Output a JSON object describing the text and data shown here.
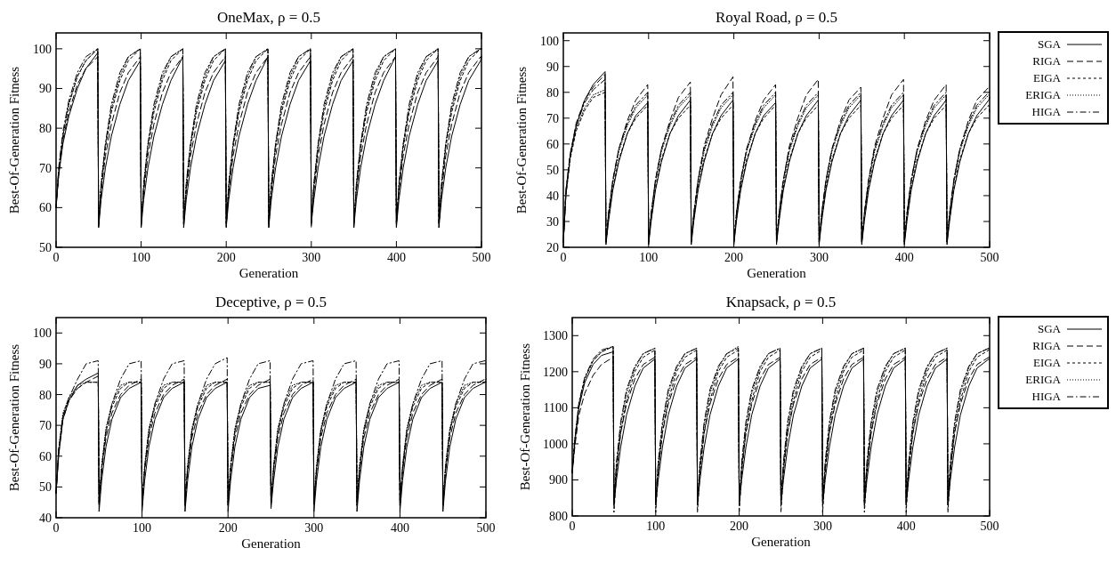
{
  "chart_data": [
    {
      "type": "line",
      "title": "OneMax, ρ = 0.5",
      "xlabel": "Generation",
      "ylabel": "Best-Of-Generation Fitness",
      "xlim": [
        0,
        500
      ],
      "xticks": [
        0,
        100,
        200,
        300,
        400,
        500
      ],
      "ylim": [
        50,
        104
      ],
      "yticks": [
        50,
        60,
        70,
        80,
        90,
        100
      ],
      "legend": false,
      "x": [
        0,
        3,
        8,
        15,
        25,
        35,
        49,
        50,
        53,
        58,
        65,
        75,
        85,
        99,
        100,
        103,
        108,
        115,
        125,
        135,
        149,
        150,
        153,
        158,
        165,
        175,
        185,
        199,
        200,
        203,
        208,
        215,
        225,
        235,
        249,
        250,
        253,
        258,
        265,
        275,
        285,
        299,
        300,
        303,
        308,
        315,
        325,
        335,
        349,
        350,
        353,
        358,
        365,
        375,
        385,
        399,
        400,
        403,
        408,
        415,
        425,
        435,
        449,
        450,
        453,
        458,
        465,
        475,
        485,
        499,
        500
      ],
      "series": [
        {
          "color": "#000000",
          "line_style": "solid",
          "values": [
            60,
            68,
            76,
            83,
            90,
            95,
            99,
            55,
            62,
            70,
            78,
            86,
            92,
            97,
            55,
            62,
            70,
            78,
            86,
            92,
            98,
            55,
            62,
            70,
            78,
            86,
            92,
            97,
            55,
            62,
            70,
            78,
            86,
            92,
            98,
            55,
            62,
            70,
            78,
            86,
            92,
            97,
            56,
            62,
            70,
            78,
            86,
            92,
            97,
            55,
            62,
            70,
            78,
            86,
            92,
            98,
            55,
            62,
            70,
            78,
            86,
            92,
            97,
            55,
            62,
            70,
            78,
            86,
            92,
            97,
            98
          ]
        },
        {
          "color": "#000000",
          "line_style": "dashed",
          "values": [
            60,
            68,
            77,
            84,
            91,
            95,
            98,
            56,
            64,
            73,
            81,
            89,
            94,
            98,
            56,
            64,
            73,
            81,
            89,
            94,
            98,
            56,
            64,
            73,
            81,
            89,
            94,
            98,
            56,
            64,
            73,
            81,
            89,
            94,
            98,
            56,
            64,
            73,
            81,
            89,
            94,
            98,
            56,
            64,
            73,
            81,
            89,
            94,
            98,
            56,
            64,
            73,
            81,
            89,
            94,
            98,
            56,
            64,
            73,
            81,
            89,
            94,
            98,
            56,
            64,
            73,
            81,
            89,
            94,
            98,
            98
          ]
        },
        {
          "color": "#000000",
          "line_style": "shortdash",
          "values": [
            60,
            69,
            78,
            86,
            93,
            97,
            100,
            56,
            65,
            75,
            84,
            92,
            97,
            100,
            56,
            65,
            75,
            84,
            92,
            97,
            100,
            56,
            65,
            75,
            84,
            92,
            97,
            100,
            56,
            65,
            75,
            84,
            92,
            97,
            100,
            56,
            65,
            75,
            84,
            92,
            97,
            100,
            56,
            65,
            75,
            84,
            92,
            97,
            100,
            56,
            65,
            75,
            84,
            92,
            97,
            100,
            56,
            65,
            75,
            84,
            92,
            97,
            100,
            56,
            65,
            75,
            84,
            92,
            97,
            100,
            100
          ]
        },
        {
          "color": "#000000",
          "line_style": "dotted",
          "values": [
            60,
            69,
            78,
            86,
            93,
            97,
            100,
            56,
            66,
            76,
            85,
            93,
            98,
            100,
            56,
            66,
            76,
            85,
            93,
            98,
            100,
            56,
            66,
            76,
            85,
            93,
            98,
            100,
            56,
            66,
            76,
            85,
            93,
            98,
            100,
            56,
            66,
            76,
            85,
            93,
            98,
            100,
            56,
            66,
            76,
            85,
            93,
            98,
            100,
            56,
            66,
            76,
            85,
            93,
            98,
            100,
            56,
            66,
            76,
            85,
            93,
            98,
            100,
            56,
            66,
            76,
            85,
            93,
            98,
            100,
            100
          ]
        },
        {
          "color": "#000000",
          "line_style": "dashdot",
          "values": [
            60,
            70,
            79,
            87,
            94,
            98,
            100,
            55,
            66,
            76,
            86,
            94,
            98,
            100,
            55,
            66,
            76,
            86,
            94,
            98,
            100,
            55,
            66,
            76,
            86,
            94,
            98,
            100,
            55,
            66,
            76,
            86,
            94,
            98,
            100,
            55,
            66,
            76,
            86,
            94,
            98,
            100,
            55,
            66,
            76,
            86,
            94,
            98,
            100,
            55,
            66,
            76,
            86,
            94,
            98,
            100,
            55,
            66,
            76,
            86,
            94,
            98,
            100,
            55,
            66,
            76,
            86,
            94,
            98,
            100,
            100
          ]
        }
      ]
    },
    {
      "type": "line",
      "title": "Royal Road, ρ = 0.5",
      "xlabel": "Generation",
      "ylabel": "Best-Of-Generation Fitness",
      "xlim": [
        0,
        500
      ],
      "xticks": [
        0,
        100,
        200,
        300,
        400,
        500
      ],
      "ylim": [
        20,
        103
      ],
      "yticks": [
        20,
        30,
        40,
        50,
        60,
        70,
        80,
        90,
        100
      ],
      "legend": "right",
      "x": [
        0,
        3,
        8,
        15,
        25,
        35,
        49,
        50,
        53,
        58,
        65,
        75,
        85,
        99,
        100,
        103,
        108,
        115,
        125,
        135,
        149,
        150,
        153,
        158,
        165,
        175,
        185,
        199,
        200,
        203,
        208,
        215,
        225,
        235,
        249,
        250,
        253,
        258,
        265,
        275,
        285,
        299,
        300,
        303,
        308,
        315,
        325,
        335,
        349,
        350,
        353,
        358,
        365,
        375,
        385,
        399,
        400,
        403,
        408,
        415,
        425,
        435,
        449,
        450,
        453,
        458,
        465,
        475,
        485,
        499,
        500
      ],
      "series": [
        {
          "name": "SGA",
          "color": "#000000",
          "line_style": "solid",
          "values": [
            22,
            40,
            55,
            67,
            77,
            83,
            88,
            21,
            30,
            42,
            53,
            64,
            71,
            76,
            21,
            30,
            42,
            53,
            64,
            71,
            77,
            21,
            30,
            42,
            53,
            64,
            71,
            77,
            21,
            30,
            42,
            53,
            64,
            71,
            76,
            21,
            30,
            42,
            53,
            64,
            71,
            77,
            21,
            30,
            42,
            53,
            64,
            71,
            77,
            21,
            30,
            42,
            53,
            64,
            71,
            77,
            21,
            30,
            42,
            53,
            64,
            71,
            77,
            21,
            30,
            42,
            53,
            64,
            71,
            77,
            78
          ]
        },
        {
          "name": "RIGA",
          "color": "#000000",
          "line_style": "dashed",
          "values": [
            22,
            42,
            56,
            68,
            77,
            82,
            87,
            22,
            33,
            46,
            58,
            69,
            77,
            83,
            22,
            33,
            46,
            58,
            69,
            78,
            84,
            22,
            33,
            46,
            59,
            70,
            79,
            86,
            22,
            33,
            46,
            58,
            69,
            77,
            83,
            22,
            33,
            46,
            59,
            70,
            79,
            85,
            22,
            33,
            46,
            58,
            69,
            77,
            82,
            22,
            33,
            46,
            59,
            70,
            79,
            85,
            22,
            33,
            46,
            58,
            69,
            77,
            83,
            22,
            33,
            46,
            58,
            69,
            77,
            82,
            82
          ]
        },
        {
          "name": "EIGA",
          "color": "#000000",
          "line_style": "shortdash",
          "values": [
            22,
            40,
            54,
            65,
            73,
            78,
            80,
            22,
            31,
            43,
            54,
            64,
            70,
            75,
            22,
            31,
            43,
            54,
            64,
            70,
            75,
            22,
            31,
            43,
            54,
            64,
            70,
            75,
            22,
            31,
            43,
            54,
            64,
            70,
            75,
            22,
            31,
            43,
            54,
            64,
            70,
            75,
            22,
            31,
            43,
            54,
            64,
            70,
            75,
            22,
            31,
            43,
            54,
            64,
            70,
            75,
            22,
            31,
            43,
            54,
            64,
            70,
            75,
            22,
            31,
            43,
            54,
            64,
            70,
            75,
            72
          ]
        },
        {
          "name": "ERIGA",
          "color": "#000000",
          "line_style": "dotted",
          "values": [
            22,
            41,
            55,
            66,
            74,
            79,
            81,
            22,
            33,
            45,
            57,
            67,
            74,
            79,
            22,
            33,
            45,
            57,
            67,
            74,
            79,
            22,
            33,
            45,
            57,
            67,
            74,
            79,
            22,
            33,
            45,
            57,
            67,
            74,
            79,
            22,
            33,
            45,
            57,
            67,
            74,
            79,
            22,
            33,
            45,
            57,
            67,
            74,
            79,
            22,
            33,
            45,
            57,
            67,
            74,
            79,
            22,
            33,
            45,
            57,
            67,
            74,
            79,
            22,
            33,
            45,
            57,
            67,
            74,
            79,
            78
          ]
        },
        {
          "name": "HIGA",
          "color": "#000000",
          "line_style": "dashdot",
          "values": [
            22,
            42,
            56,
            67,
            76,
            81,
            85,
            22,
            33,
            46,
            58,
            68,
            75,
            80,
            22,
            33,
            46,
            58,
            68,
            75,
            80,
            22,
            33,
            46,
            58,
            68,
            75,
            80,
            22,
            33,
            46,
            58,
            68,
            75,
            80,
            22,
            33,
            46,
            58,
            68,
            75,
            80,
            22,
            33,
            46,
            58,
            68,
            75,
            80,
            22,
            33,
            46,
            58,
            68,
            75,
            80,
            22,
            33,
            46,
            58,
            68,
            75,
            80,
            22,
            33,
            46,
            58,
            68,
            75,
            80,
            80
          ]
        }
      ]
    },
    {
      "type": "line",
      "title": "Deceptive, ρ = 0.5",
      "xlabel": "Generation",
      "ylabel": "Best-Of-Generation Fitness",
      "xlim": [
        0,
        500
      ],
      "xticks": [
        0,
        100,
        200,
        300,
        400,
        500
      ],
      "ylim": [
        40,
        105
      ],
      "yticks": [
        40,
        50,
        60,
        70,
        80,
        90,
        100
      ],
      "legend": false,
      "x": [
        0,
        3,
        8,
        15,
        25,
        35,
        49,
        50,
        53,
        58,
        65,
        75,
        85,
        99,
        100,
        103,
        108,
        115,
        125,
        135,
        149,
        150,
        153,
        158,
        165,
        175,
        185,
        199,
        200,
        203,
        208,
        215,
        225,
        235,
        249,
        250,
        253,
        258,
        265,
        275,
        285,
        299,
        300,
        303,
        308,
        315,
        325,
        335,
        349,
        350,
        353,
        358,
        365,
        375,
        385,
        399,
        400,
        403,
        408,
        415,
        425,
        435,
        449,
        450,
        453,
        458,
        465,
        475,
        485,
        499,
        500
      ],
      "series": [
        {
          "color": "#000000",
          "line_style": "solid",
          "values": [
            48,
            60,
            72,
            78,
            83,
            85,
            87,
            42,
            52,
            63,
            72,
            79,
            82,
            84,
            42,
            52,
            63,
            72,
            79,
            82,
            84,
            42,
            52,
            63,
            72,
            79,
            82,
            84,
            42,
            52,
            63,
            72,
            79,
            82,
            83,
            43,
            52,
            63,
            72,
            79,
            82,
            84,
            42,
            52,
            63,
            72,
            79,
            82,
            84,
            42,
            52,
            63,
            72,
            79,
            82,
            84,
            42,
            52,
            63,
            72,
            79,
            82,
            84,
            42,
            52,
            63,
            72,
            79,
            82,
            84,
            84
          ]
        },
        {
          "color": "#000000",
          "line_style": "dashed",
          "values": [
            48,
            61,
            72,
            78,
            82,
            84,
            86,
            44,
            55,
            66,
            74,
            80,
            83,
            85,
            44,
            55,
            66,
            74,
            80,
            83,
            85,
            44,
            55,
            66,
            74,
            80,
            83,
            85,
            44,
            55,
            66,
            74,
            80,
            83,
            85,
            44,
            55,
            66,
            74,
            80,
            83,
            85,
            44,
            55,
            66,
            74,
            80,
            83,
            85,
            44,
            55,
            66,
            74,
            80,
            83,
            85,
            44,
            55,
            66,
            74,
            80,
            83,
            85,
            44,
            55,
            66,
            74,
            80,
            83,
            85,
            85
          ]
        },
        {
          "color": "#000000",
          "line_style": "shortdash",
          "values": [
            48,
            62,
            73,
            79,
            82,
            84,
            84,
            45,
            56,
            68,
            76,
            82,
            84,
            84,
            45,
            56,
            68,
            76,
            82,
            84,
            84,
            45,
            56,
            68,
            76,
            82,
            84,
            84,
            45,
            56,
            68,
            76,
            82,
            84,
            84,
            45,
            56,
            68,
            76,
            82,
            84,
            84,
            45,
            56,
            68,
            76,
            82,
            84,
            84,
            45,
            56,
            68,
            76,
            82,
            84,
            84,
            45,
            56,
            68,
            76,
            82,
            84,
            84,
            45,
            56,
            68,
            76,
            82,
            84,
            84,
            84
          ]
        },
        {
          "color": "#000000",
          "line_style": "dotted",
          "values": [
            48,
            62,
            74,
            79,
            83,
            84,
            84,
            45,
            57,
            69,
            77,
            83,
            84,
            84,
            45,
            57,
            69,
            77,
            83,
            84,
            84,
            45,
            57,
            69,
            77,
            83,
            84,
            84,
            45,
            57,
            69,
            77,
            83,
            84,
            84,
            45,
            57,
            69,
            77,
            83,
            84,
            84,
            45,
            57,
            69,
            77,
            83,
            84,
            84,
            45,
            57,
            69,
            77,
            83,
            84,
            84,
            45,
            57,
            69,
            77,
            83,
            84,
            84,
            45,
            57,
            69,
            77,
            83,
            84,
            84,
            85
          ]
        },
        {
          "color": "#000000",
          "line_style": "dashdot",
          "values": [
            48,
            62,
            73,
            79,
            85,
            90,
            91,
            44,
            56,
            68,
            77,
            85,
            90,
            91,
            44,
            56,
            68,
            77,
            85,
            90,
            91,
            44,
            56,
            68,
            77,
            85,
            90,
            92,
            44,
            56,
            68,
            77,
            85,
            90,
            91,
            44,
            56,
            68,
            77,
            85,
            90,
            91,
            44,
            56,
            68,
            77,
            85,
            90,
            91,
            44,
            56,
            68,
            77,
            85,
            90,
            91,
            44,
            56,
            68,
            77,
            85,
            90,
            91,
            44,
            56,
            68,
            77,
            85,
            90,
            91,
            91
          ]
        }
      ]
    },
    {
      "type": "line",
      "title": "Knapsack, ρ = 0.5",
      "xlabel": "Generation",
      "ylabel": "Best-Of-Generation Fitness",
      "xlim": [
        0,
        500
      ],
      "xticks": [
        0,
        100,
        200,
        300,
        400,
        500
      ],
      "ylim": [
        800,
        1350
      ],
      "yticks": [
        800,
        900,
        1000,
        1100,
        1200,
        1300
      ],
      "legend": "right",
      "x": [
        0,
        3,
        8,
        15,
        25,
        35,
        49,
        50,
        53,
        58,
        65,
        75,
        85,
        99,
        100,
        103,
        108,
        115,
        125,
        135,
        149,
        150,
        153,
        158,
        165,
        175,
        185,
        199,
        200,
        203,
        208,
        215,
        225,
        235,
        249,
        250,
        253,
        258,
        265,
        275,
        285,
        299,
        300,
        303,
        308,
        315,
        325,
        335,
        349,
        350,
        353,
        358,
        365,
        375,
        385,
        399,
        400,
        403,
        408,
        415,
        425,
        435,
        449,
        450,
        453,
        458,
        465,
        475,
        485,
        499,
        500
      ],
      "series": [
        {
          "name": "SGA",
          "color": "#000000",
          "line_style": "solid",
          "values": [
            920,
            1000,
            1100,
            1170,
            1220,
            1245,
            1255,
            830,
            900,
            990,
            1080,
            1160,
            1210,
            1235,
            830,
            900,
            990,
            1080,
            1160,
            1210,
            1235,
            830,
            900,
            990,
            1080,
            1160,
            1210,
            1235,
            830,
            900,
            990,
            1080,
            1160,
            1210,
            1235,
            830,
            900,
            990,
            1080,
            1160,
            1210,
            1235,
            830,
            900,
            990,
            1080,
            1160,
            1210,
            1235,
            830,
            900,
            990,
            1080,
            1160,
            1210,
            1235,
            830,
            900,
            990,
            1080,
            1160,
            1210,
            1235,
            830,
            900,
            990,
            1080,
            1160,
            1210,
            1235,
            1235
          ]
        },
        {
          "name": "RIGA",
          "color": "#000000",
          "line_style": "dashed",
          "values": [
            920,
            990,
            1080,
            1140,
            1190,
            1220,
            1240,
            840,
            930,
            1030,
            1110,
            1180,
            1220,
            1240,
            840,
            930,
            1030,
            1110,
            1180,
            1220,
            1240,
            840,
            930,
            1030,
            1110,
            1180,
            1220,
            1240,
            840,
            930,
            1030,
            1110,
            1180,
            1220,
            1240,
            840,
            930,
            1030,
            1110,
            1180,
            1220,
            1240,
            840,
            930,
            1030,
            1110,
            1180,
            1220,
            1240,
            840,
            930,
            1030,
            1110,
            1180,
            1220,
            1240,
            840,
            930,
            1030,
            1110,
            1180,
            1220,
            1240,
            840,
            930,
            1030,
            1110,
            1180,
            1220,
            1240,
            1240
          ]
        },
        {
          "name": "EIGA",
          "color": "#000000",
          "line_style": "shortdash",
          "values": [
            920,
            1010,
            1110,
            1180,
            1230,
            1255,
            1270,
            810,
            920,
            1030,
            1120,
            1200,
            1240,
            1260,
            810,
            920,
            1030,
            1120,
            1200,
            1240,
            1260,
            810,
            920,
            1030,
            1120,
            1200,
            1240,
            1260,
            810,
            920,
            1030,
            1120,
            1200,
            1240,
            1260,
            810,
            920,
            1030,
            1120,
            1200,
            1240,
            1260,
            810,
            920,
            1030,
            1120,
            1200,
            1240,
            1260,
            810,
            920,
            1030,
            1120,
            1200,
            1240,
            1260,
            810,
            920,
            1030,
            1120,
            1200,
            1240,
            1260,
            810,
            920,
            1030,
            1120,
            1200,
            1240,
            1260,
            1265
          ]
        },
        {
          "name": "ERIGA",
          "color": "#000000",
          "line_style": "dotted",
          "values": [
            920,
            1010,
            1110,
            1180,
            1230,
            1255,
            1270,
            830,
            940,
            1050,
            1140,
            1210,
            1250,
            1265,
            830,
            940,
            1050,
            1140,
            1210,
            1250,
            1265,
            830,
            940,
            1050,
            1140,
            1210,
            1250,
            1270,
            830,
            940,
            1050,
            1140,
            1210,
            1250,
            1265,
            830,
            940,
            1050,
            1140,
            1210,
            1250,
            1265,
            830,
            940,
            1050,
            1140,
            1210,
            1250,
            1265,
            830,
            940,
            1050,
            1140,
            1210,
            1250,
            1265,
            830,
            940,
            1050,
            1140,
            1210,
            1250,
            1265,
            830,
            940,
            1050,
            1140,
            1210,
            1250,
            1265,
            1265
          ]
        },
        {
          "name": "HIGA",
          "color": "#000000",
          "line_style": "dashdot",
          "values": [
            920,
            1010,
            1115,
            1185,
            1235,
            1260,
            1270,
            840,
            950,
            1060,
            1150,
            1215,
            1250,
            1265,
            840,
            950,
            1060,
            1150,
            1215,
            1250,
            1265,
            840,
            950,
            1060,
            1150,
            1215,
            1250,
            1265,
            840,
            950,
            1060,
            1150,
            1215,
            1250,
            1265,
            840,
            950,
            1060,
            1150,
            1215,
            1250,
            1265,
            840,
            950,
            1060,
            1150,
            1215,
            1250,
            1265,
            840,
            950,
            1060,
            1150,
            1215,
            1250,
            1265,
            840,
            950,
            1060,
            1150,
            1215,
            1250,
            1265,
            840,
            950,
            1060,
            1150,
            1215,
            1250,
            1265,
            1265
          ]
        }
      ]
    }
  ]
}
